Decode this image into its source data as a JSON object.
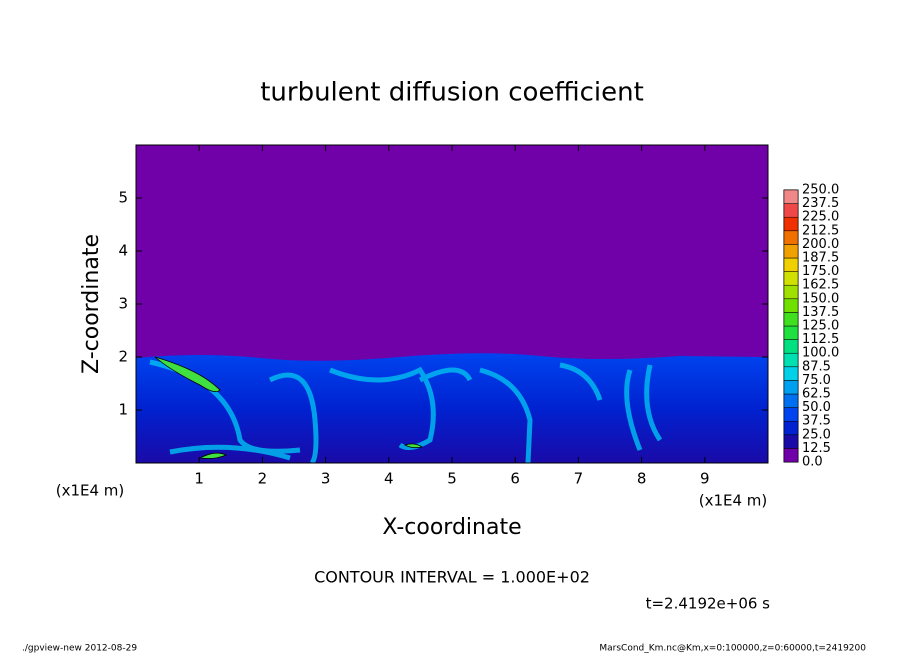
{
  "chart_data": {
    "type": "contour",
    "title": "turbulent diffusion coefficient",
    "xlabel": "X-coordinate",
    "ylabel": "Z-coordinate",
    "x_unit": "(x1E4 m)",
    "y_unit": "(x1E4 m)",
    "xlim": [
      0,
      10
    ],
    "ylim": [
      0,
      6
    ],
    "xticks": [
      1,
      2,
      3,
      4,
      5,
      6,
      7,
      8,
      9
    ],
    "yticks": [
      1,
      2,
      3,
      4,
      5
    ],
    "levels": [
      {
        "value": 0,
        "label": "0.0"
      },
      12.5,
      {
        "value": 25,
        "label": "25.0"
      },
      37.5,
      {
        "value": 50,
        "label": "50.0"
      },
      62.5,
      {
        "value": 75,
        "label": "75.0"
      },
      87.5,
      {
        "value": 100,
        "label": "100.0"
      },
      112.5,
      {
        "value": 125,
        "label": "125.0"
      },
      137.5,
      {
        "value": 150,
        "label": "150.0"
      },
      162.5,
      {
        "value": 175,
        "label": "175.0"
      },
      187.5,
      {
        "value": 200,
        "label": "200.0"
      },
      212.5,
      {
        "value": 225,
        "label": "225.0"
      },
      237.5,
      {
        "value": 250,
        "label": "250.0"
      }
    ],
    "colors": [
      "#7000a8",
      "#1a0aa8",
      "#0022d0",
      "#0044f0",
      "#0070f0",
      "#00a0f0",
      "#00d0e8",
      "#00e0b0",
      "#00e080",
      "#20e040",
      "#40e020",
      "#70e000",
      "#a0e000",
      "#d0e000",
      "#f0d000",
      "#f0a000",
      "#f07000",
      "#f03000",
      "#f04848",
      "#f08888"
    ],
    "contour_interval": "CONTOUR INTERVAL = 1.000E+02",
    "time": "t=2.4192e+06 s"
  },
  "footer": {
    "left": "./gpview-new  2012-08-29",
    "right": "MarsCond_Km.nc@Km,x=0:100000,z=0:60000,t=2419200"
  }
}
